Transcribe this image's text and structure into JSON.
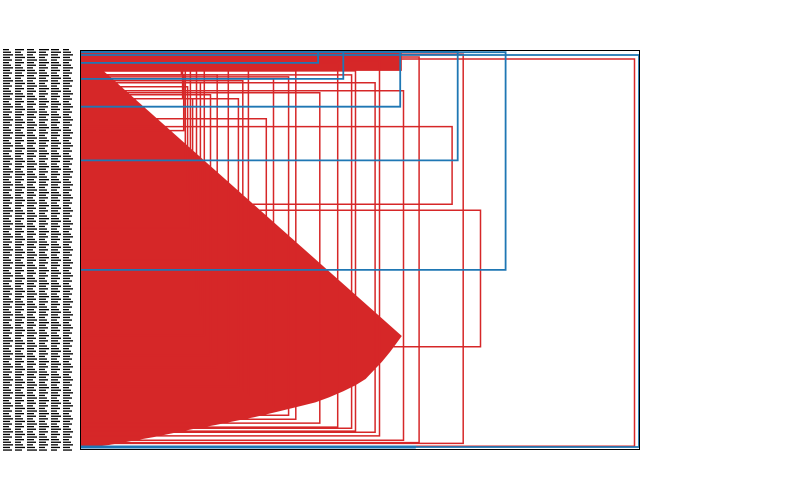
{
  "chart_data": {
    "type": "dendrogram",
    "orientation": "left",
    "title": "",
    "xlabel": "",
    "ylabel": "",
    "leaf_labels_dense": true,
    "leaf_labels_legible": false,
    "colors": {
      "cluster_main": "#d62728",
      "above_threshold": "#1f77b4",
      "axes": "#000000",
      "background": "#ffffff"
    },
    "grid": false,
    "legend": "none",
    "xlim": [
      0,
      100
    ],
    "ylim": [
      0,
      100
    ],
    "above_threshold_links": [
      {
        "name": "root",
        "height": 100,
        "lower_pos": 99.5,
        "upper_pos": 1.0
      },
      {
        "name": "branch-a",
        "height": 76.1,
        "lower_pos": 55.0,
        "upper_pos": 0.3
      },
      {
        "name": "branch-b",
        "height": 67.5,
        "lower_pos": 27.5,
        "upper_pos": 0.2
      },
      {
        "name": "branch-c",
        "height": 57.2,
        "lower_pos": 14.0,
        "upper_pos": 0.2
      },
      {
        "name": "branch-d",
        "height": 47.0,
        "lower_pos": 7.0,
        "upper_pos": 0.2
      },
      {
        "name": "branch-e",
        "height": 42.5,
        "lower_pos": 3.0,
        "upper_pos": 0.2
      }
    ],
    "main_cluster_links": [
      {
        "name": "link-1",
        "height": 99.2,
        "lower_pos": 99.3,
        "upper_pos": 2.0
      },
      {
        "name": "link-2",
        "height": 71.6,
        "lower_pos": 74.3,
        "upper_pos": 40.0
      },
      {
        "name": "link-3",
        "height": 68.5,
        "lower_pos": 98.6,
        "upper_pos": 0.8
      },
      {
        "name": "link-4",
        "height": 66.5,
        "lower_pos": 38.5,
        "upper_pos": 19.0
      },
      {
        "name": "link-5",
        "height": 60.6,
        "lower_pos": 98.4,
        "upper_pos": 1.5
      },
      {
        "name": "link-6",
        "height": 57.8,
        "lower_pos": 97.8,
        "upper_pos": 10.0
      },
      {
        "name": "link-7",
        "height": 53.5,
        "lower_pos": 96.7,
        "upper_pos": 2.5
      },
      {
        "name": "link-8",
        "height": 52.7,
        "lower_pos": 95.8,
        "upper_pos": 8.0
      },
      {
        "name": "link-9",
        "height": 49.2,
        "lower_pos": 95.5,
        "upper_pos": 5.0
      },
      {
        "name": "link-10",
        "height": 48.5,
        "lower_pos": 94.8,
        "upper_pos": 6.0
      },
      {
        "name": "link-11",
        "height": 46.0,
        "lower_pos": 94.5,
        "upper_pos": 3.0
      },
      {
        "name": "link-12",
        "height": 42.8,
        "lower_pos": 93.5,
        "upper_pos": 10.5
      },
      {
        "name": "link-13",
        "height": 38.5,
        "lower_pos": 92.5,
        "upper_pos": 5.0
      },
      {
        "name": "link-14",
        "height": 37.2,
        "lower_pos": 91.5,
        "upper_pos": 6.5
      },
      {
        "name": "link-15",
        "height": 34.5,
        "lower_pos": 89.5,
        "upper_pos": 7.0
      },
      {
        "name": "link-16",
        "height": 33.2,
        "lower_pos": 88.0,
        "upper_pos": 17.0
      },
      {
        "name": "link-17",
        "height": 30.0,
        "lower_pos": 86.5,
        "upper_pos": 2.0
      },
      {
        "name": "link-18",
        "height": 29.0,
        "lower_pos": 85.5,
        "upper_pos": 7.5
      },
      {
        "name": "link-19",
        "height": 28.2,
        "lower_pos": 84.3,
        "upper_pos": 12.0
      },
      {
        "name": "link-20",
        "height": 26.4,
        "lower_pos": 82.5,
        "upper_pos": 4.0
      },
      {
        "name": "link-21",
        "height": 24.4,
        "lower_pos": 79.5,
        "upper_pos": 6.0
      },
      {
        "name": "link-22",
        "height": 23.2,
        "lower_pos": 76.5,
        "upper_pos": 11.0
      },
      {
        "name": "link-23",
        "height": 22.1,
        "lower_pos": 71.5,
        "upper_pos": 3.0
      },
      {
        "name": "link-24",
        "height": 21.4,
        "lower_pos": 66.5,
        "upper_pos": 8.0
      },
      {
        "name": "link-25",
        "height": 20.7,
        "lower_pos": 60.0,
        "upper_pos": 5.0
      },
      {
        "name": "link-26",
        "height": 20.0,
        "lower_pos": 52.5,
        "upper_pos": 12.0
      },
      {
        "name": "link-27",
        "height": 19.6,
        "lower_pos": 44.5,
        "upper_pos": 4.0
      },
      {
        "name": "link-28",
        "height": 19.1,
        "lower_pos": 36.0,
        "upper_pos": 9.0
      },
      {
        "name": "link-29",
        "height": 18.7,
        "lower_pos": 28.5,
        "upper_pos": 3.0
      },
      {
        "name": "link-30",
        "height": 18.4,
        "lower_pos": 20.0,
        "upper_pos": 6.0
      },
      {
        "name": "link-31",
        "height": 18.2,
        "lower_pos": 12.0,
        "upper_pos": 2.0
      },
      {
        "name": "link-32",
        "height": 18.0,
        "lower_pos": 6.0,
        "upper_pos": 1.0
      }
    ],
    "merge_profile": [
      [
        57.5,
        71.6
      ],
      [
        56.5,
        73.5
      ],
      [
        55.4,
        75.6
      ],
      [
        54.0,
        78.0
      ],
      [
        52.5,
        80.2
      ],
      [
        51.0,
        82.4
      ],
      [
        49.2,
        84.0
      ],
      [
        47.0,
        85.5
      ],
      [
        44.5,
        87.0
      ],
      [
        42.0,
        88.3
      ],
      [
        38.5,
        89.5
      ],
      [
        35.0,
        90.7
      ],
      [
        31.0,
        92.0
      ],
      [
        27.5,
        93.0
      ],
      [
        24.0,
        94.0
      ],
      [
        20.0,
        95.0
      ],
      [
        16.5,
        96.0
      ],
      [
        13.0,
        97.0
      ],
      [
        9.0,
        98.0
      ],
      [
        5.0,
        99.0
      ],
      [
        0.0,
        99.5
      ]
    ]
  }
}
